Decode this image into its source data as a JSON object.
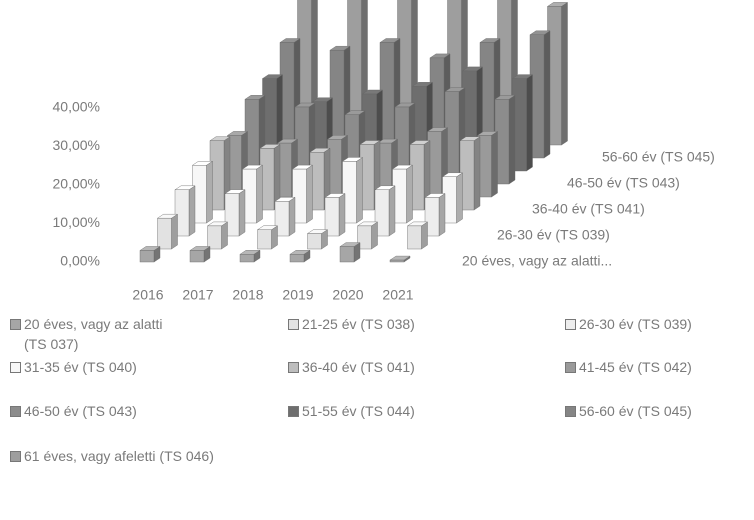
{
  "chart_data": {
    "type": "bar3d",
    "categories": [
      "2016",
      "2017",
      "2018",
      "2019",
      "2020",
      "2021"
    ],
    "ylim": [
      0,
      40
    ],
    "yticks": [
      {
        "value": 0,
        "label": "0,00%"
      },
      {
        "value": 10,
        "label": "10,00%"
      },
      {
        "value": 20,
        "label": "20,00%"
      },
      {
        "value": 30,
        "label": "30,00%"
      },
      {
        "value": 40,
        "label": "40,00%"
      }
    ],
    "depth_labels": [
      "20 éves, vagy az alatti...",
      "26-30 év (TS 039)",
      "36-40 év (TS 041)",
      "46-50 év (TS 043)",
      "56-60 év (TS 045)"
    ],
    "series": [
      {
        "name": "20 éves, vagy az alatti (TS 037)",
        "color": "#a6a6a6",
        "values": [
          3,
          3,
          2,
          2,
          4,
          0.5
        ]
      },
      {
        "name": "21-25 év (TS 038)",
        "color": "#e2e2e2",
        "values": [
          8,
          6,
          5,
          4,
          6,
          6
        ]
      },
      {
        "name": "26-30 év (TS 039)",
        "color": "#ededed",
        "values": [
          12,
          11,
          9,
          10,
          12,
          10
        ]
      },
      {
        "name": "31-35 év (TS 040)",
        "color": "#f7f7f7",
        "values": [
          15,
          14,
          14,
          16,
          14,
          12
        ]
      },
      {
        "name": "36-40 év (TS 041)",
        "color": "#bdbdbd",
        "values": [
          18,
          16,
          15,
          17,
          17,
          18
        ]
      },
      {
        "name": "41-45 év (TS 042)",
        "color": "#9a9a9a",
        "values": [
          16,
          14,
          15,
          14,
          17,
          16
        ]
      },
      {
        "name": "46-50 év (TS 043)",
        "color": "#8c8c8c",
        "values": [
          22,
          20,
          18,
          20,
          24,
          22
        ]
      },
      {
        "name": "51-55 év (TS 044)",
        "color": "#6e6e6e",
        "values": [
          24,
          18,
          20,
          22,
          26,
          24
        ]
      },
      {
        "name": "56-60 év (TS 045)",
        "color": "#858585",
        "values": [
          30,
          28,
          30,
          26,
          30,
          32
        ]
      },
      {
        "name": "61 éves, vagy afeletti (TS 046)",
        "color": "#9e9e9e",
        "values": [
          40,
          44,
          42,
          38,
          44,
          36
        ]
      }
    ]
  }
}
